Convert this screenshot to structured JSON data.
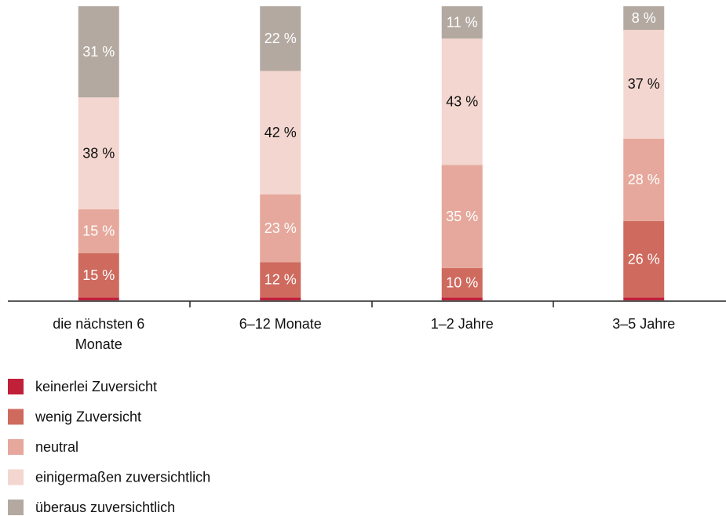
{
  "chart_data": {
    "type": "stacked_bar",
    "categories": [
      "die nächsten 6 Monate",
      "6–12 Monate",
      "1–2 Jahre",
      "3–5 Jahre"
    ],
    "ylim": [
      0,
      100
    ],
    "series": [
      {
        "name": "keinerlei Zuversicht",
        "color": "#c0203a",
        "values": [
          1,
          1,
          1,
          1
        ]
      },
      {
        "name": "wenig Zuversicht",
        "color": "#cf6a5e",
        "label_color": "#ffffff",
        "values": [
          15,
          12,
          10,
          26
        ],
        "value_labels": [
          "15 %",
          "12 %",
          "10 %",
          "26 %"
        ]
      },
      {
        "name": "neutral",
        "color": "#e6a89c",
        "label_color": "#ffffff",
        "values": [
          15,
          23,
          35,
          28
        ],
        "value_labels": [
          "15 %",
          "23 %",
          "35 %",
          "28 %"
        ]
      },
      {
        "name": "einigermaßen zuversichtlich",
        "color": "#f3d6cf",
        "label_color": "#111111",
        "values": [
          38,
          42,
          43,
          37
        ],
        "value_labels": [
          "38 %",
          "42 %",
          "43 %",
          "37 %"
        ]
      },
      {
        "name": "überaus zuversichtlich",
        "color": "#b3a9a0",
        "label_color": "#ffffff",
        "values": [
          31,
          22,
          11,
          8
        ],
        "value_labels": [
          "31 %",
          "22 %",
          "11 %",
          "8 %"
        ]
      }
    ]
  }
}
